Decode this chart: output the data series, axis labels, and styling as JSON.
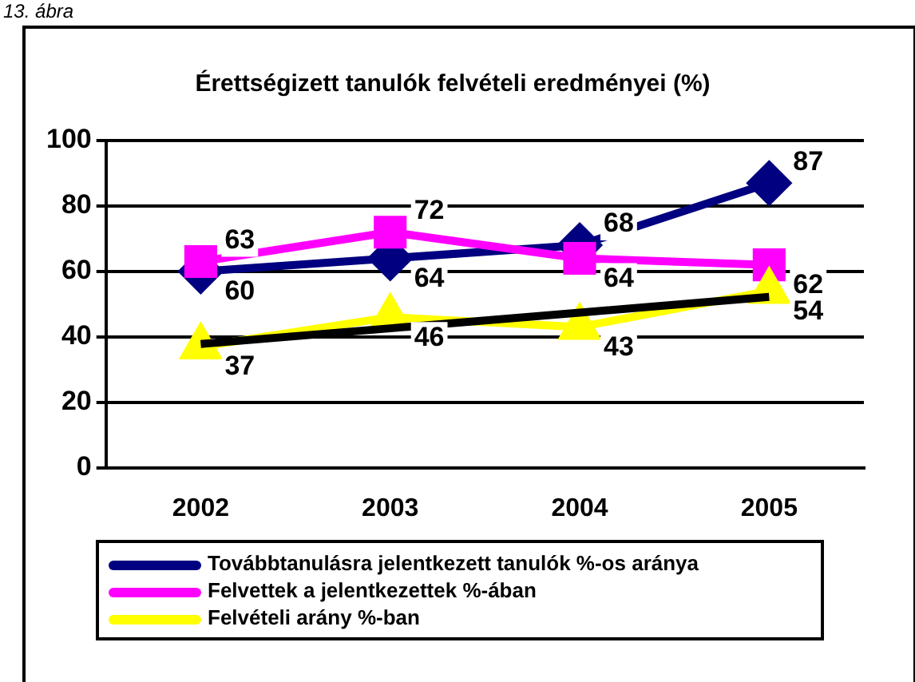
{
  "chart_data": {
    "type": "line",
    "title": "Érettségizett tanulók felvételi eredményei (%)",
    "annotations": [
      "13. ábra"
    ],
    "categories": [
      "2002",
      "2003",
      "2004",
      "2005"
    ],
    "series": [
      {
        "name": "Továbbtanulásra jelentkezett tanulók %-os aránya",
        "color": "#000080",
        "values": [
          60,
          64,
          68,
          87
        ],
        "marker": "diamond",
        "value_labels": [
          "60",
          "64",
          "68",
          "87"
        ]
      },
      {
        "name": "Felvettek a jelentkezettek %-ában",
        "color": "#ff00ff",
        "values": [
          63,
          72,
          64,
          62
        ],
        "marker": "square",
        "value_labels": [
          "63",
          "72",
          "64",
          "62"
        ]
      },
      {
        "name": "Felvételi arány %-ban",
        "color": "#ffff00",
        "values": [
          37,
          46,
          43,
          54
        ],
        "marker": "triangle",
        "value_labels": [
          "37",
          "46",
          "43",
          "54"
        ]
      },
      {
        "type": "line",
        "color": "#000000",
        "values": [
          37.8,
          42.6,
          47.4,
          52.2
        ],
        "marker": "none"
      }
    ],
    "ylim": [
      0,
      100
    ],
    "yticks": [
      0,
      20,
      40,
      60,
      80,
      100
    ],
    "grid": "y",
    "legend": "bottom"
  }
}
